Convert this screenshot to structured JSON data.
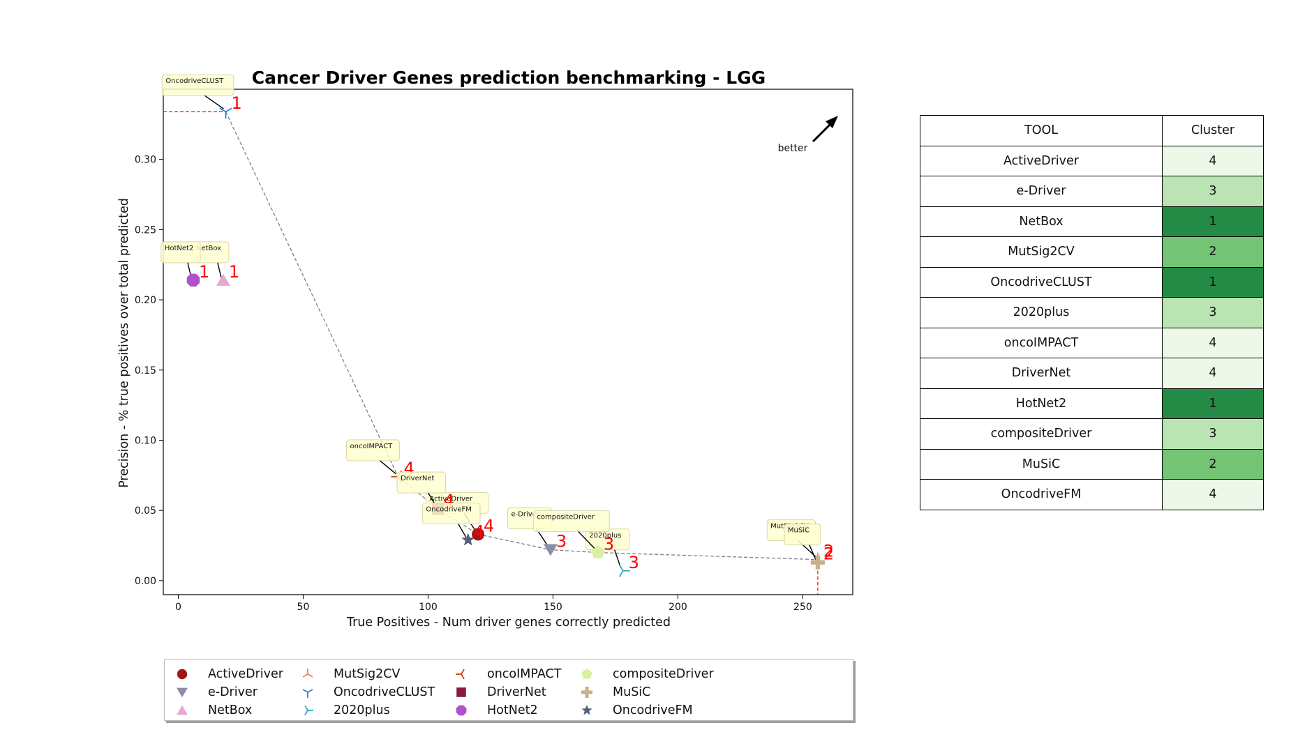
{
  "chart_data": {
    "type": "scatter",
    "title": "Cancer Driver Genes prediction benchmarking - LGG",
    "xlabel": "True Positives - Num driver genes correctly predicted",
    "ylabel": "Precision - % true positives over total predicted",
    "xlim": [
      -6,
      270
    ],
    "ylim": [
      -0.01,
      0.35
    ],
    "xticks": [
      0,
      50,
      100,
      150,
      200,
      250
    ],
    "yticks": [
      0.0,
      0.05,
      0.1,
      0.15,
      0.2,
      0.25,
      0.3
    ],
    "xtick_labels": [
      "0",
      "50",
      "100",
      "150",
      "200",
      "250"
    ],
    "ytick_labels": [
      "0.00",
      "0.05",
      "0.10",
      "0.15",
      "0.20",
      "0.25",
      "0.30"
    ],
    "annotation": "better",
    "grid": false,
    "legend_position": "bottom",
    "points": [
      {
        "tool": "ActiveDriver",
        "x": 120,
        "y": 0.033,
        "cluster": "4",
        "marker": "circle",
        "color": "#a31515"
      },
      {
        "tool": "e-Driver",
        "x": 149,
        "y": 0.022,
        "cluster": "3",
        "marker": "triangle-down",
        "color": "#8a8ea8"
      },
      {
        "tool": "NetBox",
        "x": 18,
        "y": 0.214,
        "cluster": "1",
        "marker": "triangle-up",
        "color": "#e6a8d0"
      },
      {
        "tool": "MutSig2CV",
        "x": 256,
        "y": 0.015,
        "cluster": "2",
        "marker": "tri-down",
        "color": "#f07a6a"
      },
      {
        "tool": "OncodriveCLUST",
        "x": 19,
        "y": 0.334,
        "cluster": "1",
        "marker": "tri-up",
        "color": "#2a7fd4"
      },
      {
        "tool": "2020plus",
        "x": 178,
        "y": 0.007,
        "cluster": "3",
        "marker": "tri-left",
        "color": "#20b0c0"
      },
      {
        "tool": "oncoIMPACT",
        "x": 88,
        "y": 0.074,
        "cluster": "4",
        "marker": "tri-right",
        "color": "#d4401a"
      },
      {
        "tool": "DriverNet",
        "x": 104,
        "y": 0.051,
        "cluster": "4",
        "marker": "square",
        "color": "#8b1a40"
      },
      {
        "tool": "HotNet2",
        "x": 6,
        "y": 0.214,
        "cluster": "1",
        "marker": "octagon",
        "color": "#b050cc"
      },
      {
        "tool": "compositeDriver",
        "x": 168,
        "y": 0.02,
        "cluster": "3",
        "marker": "pentagon",
        "color": "#d8f0a0"
      },
      {
        "tool": "MuSiC",
        "x": 256,
        "y": 0.013,
        "cluster": "2",
        "marker": "plus",
        "color": "#c8b088"
      },
      {
        "tool": "OncodriveFM",
        "x": 116,
        "y": 0.029,
        "cluster": "4",
        "marker": "star",
        "color": "#50607a"
      }
    ],
    "pareto_front": [
      [
        19,
        0.334
      ],
      [
        88,
        0.074
      ],
      [
        104,
        0.051
      ],
      [
        120,
        0.033
      ],
      [
        149,
        0.022
      ],
      [
        168,
        0.02
      ],
      [
        256,
        0.015
      ]
    ],
    "label_colors": {
      "cluster_number": "#ff0000",
      "label_box": "#ffffd0",
      "pareto_line": "#808080",
      "ref_line": "#ff0000"
    }
  },
  "table": {
    "headers": [
      "TOOL",
      "Cluster"
    ],
    "rows": [
      {
        "tool": "ActiveDriver",
        "cluster": "4",
        "color": "#edf8e9"
      },
      {
        "tool": "e-Driver",
        "cluster": "3",
        "color": "#bae4b3"
      },
      {
        "tool": "NetBox",
        "cluster": "1",
        "color": "#238b45"
      },
      {
        "tool": "MutSig2CV",
        "cluster": "2",
        "color": "#74c476"
      },
      {
        "tool": "OncodriveCLUST",
        "cluster": "1",
        "color": "#238b45"
      },
      {
        "tool": "2020plus",
        "cluster": "3",
        "color": "#bae4b3"
      },
      {
        "tool": "oncoIMPACT",
        "cluster": "4",
        "color": "#edf8e9"
      },
      {
        "tool": "DriverNet",
        "cluster": "4",
        "color": "#edf8e9"
      },
      {
        "tool": "HotNet2",
        "cluster": "1",
        "color": "#238b45"
      },
      {
        "tool": "compositeDriver",
        "cluster": "3",
        "color": "#bae4b3"
      },
      {
        "tool": "MuSiC",
        "cluster": "2",
        "color": "#74c476"
      },
      {
        "tool": "OncodriveFM",
        "cluster": "4",
        "color": "#edf8e9"
      }
    ]
  },
  "legend": {
    "items": [
      {
        "label": "ActiveDriver",
        "marker": "circle",
        "color": "#a31515"
      },
      {
        "label": "e-Driver",
        "marker": "triangle-down",
        "color": "#8a8ea8"
      },
      {
        "label": "NetBox",
        "marker": "triangle-up",
        "color": "#e6a8d0"
      },
      {
        "label": "MutSig2CV",
        "marker": "tri-down",
        "color": "#f07a6a"
      },
      {
        "label": "OncodriveCLUST",
        "marker": "tri-up",
        "color": "#2a7fd4"
      },
      {
        "label": "2020plus",
        "marker": "tri-left",
        "color": "#20b0c0"
      },
      {
        "label": "oncoIMPACT",
        "marker": "tri-right",
        "color": "#d4401a"
      },
      {
        "label": "DriverNet",
        "marker": "square",
        "color": "#8b1a40"
      },
      {
        "label": "HotNet2",
        "marker": "octagon",
        "color": "#b050cc"
      },
      {
        "label": "compositeDriver",
        "marker": "pentagon",
        "color": "#d8f0a0"
      },
      {
        "label": "MuSiC",
        "marker": "plus",
        "color": "#c8b088"
      },
      {
        "label": "OncodriveFM",
        "marker": "star",
        "color": "#50607a"
      }
    ]
  }
}
